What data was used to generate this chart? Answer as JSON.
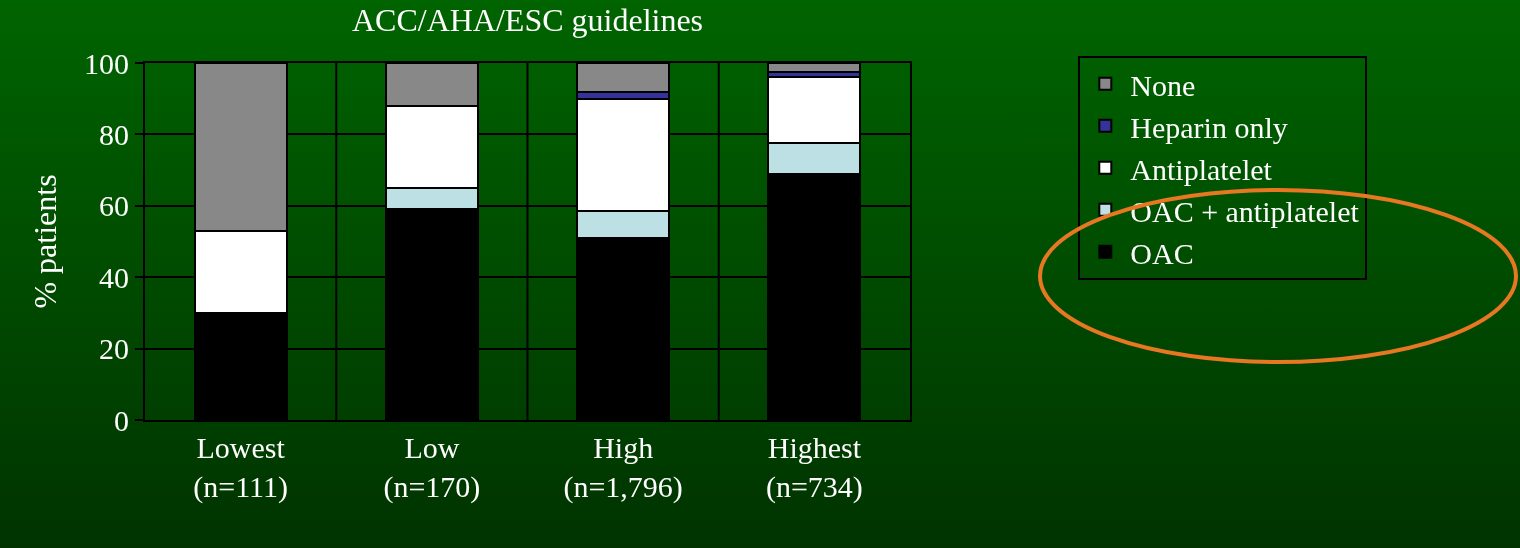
{
  "chart_data": {
    "type": "bar",
    "title": "ACC/AHA/ESC guidelines",
    "ylabel": "% patients",
    "categories": [
      "Lowest\n(n=111)",
      "Low\n(n=170)",
      "High\n(n=1,796)",
      "Highest\n(n=734)"
    ],
    "stacked": true,
    "ylim": [
      0,
      100
    ],
    "yticks": [
      0,
      20,
      40,
      60,
      80,
      100
    ],
    "grid": true,
    "legend": "right",
    "series": [
      {
        "name": "OAC",
        "color": "#000000",
        "values": [
          30,
          59,
          51,
          69
        ]
      },
      {
        "name": "OAC + antiplatelet",
        "color": "#bce0e4",
        "values": [
          0,
          6,
          7.5,
          8.5
        ]
      },
      {
        "name": "Antiplatelet",
        "color": "#ffffff",
        "values": [
          23,
          23,
          31.5,
          18.5
        ]
      },
      {
        "name": "Heparin only",
        "color": "#333399",
        "values": [
          0,
          0,
          2,
          1.5
        ]
      },
      {
        "name": "None",
        "color": "#888888",
        "values": [
          47,
          12,
          8,
          2.5
        ]
      }
    ]
  }
}
